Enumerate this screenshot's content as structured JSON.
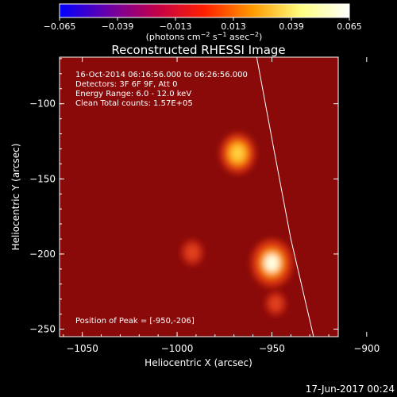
{
  "chart_data": {
    "type": "heatmap",
    "title": "Reconstructed RHESSI Image",
    "xlabel": "Heliocentric X (arcsec)",
    "ylabel": "Heliocentric Y (arcsec)",
    "xlim": [
      -1062,
      -915
    ],
    "ylim": [
      -255,
      -69
    ],
    "x_ticks": [
      -1050,
      -1000,
      -950,
      -900
    ],
    "x_tick_labels": [
      "−1050",
      "−1000",
      "−950",
      "−900"
    ],
    "y_ticks": [
      -100,
      -150,
      -200,
      -250
    ],
    "y_tick_labels": [
      "−100",
      "−150",
      "−200",
      "−250"
    ],
    "colorbar": {
      "range": [
        -0.065,
        0.065
      ],
      "ticks": [
        -0.065,
        -0.039,
        -0.013,
        0.013,
        0.039,
        0.065
      ],
      "tick_labels": [
        "−0.065",
        "−0.039",
        "−0.013",
        "0.013",
        "0.039",
        "0.065"
      ],
      "unit_label": "(photons cm",
      "unit_exp1": "−2",
      "unit_mid": " s",
      "unit_exp2": "−1",
      "unit_mid2": " asec",
      "unit_exp3": "−2",
      "unit_end": ")",
      "colors": [
        "#0000ff",
        "#6a00a8",
        "#c2004a",
        "#ff2000",
        "#ff9a00",
        "#ffff80",
        "#ffffff"
      ]
    },
    "info_lines": [
      "16-Oct-2014 06:16:56.000 to 06:26:56.000",
      "Detectors: 3F 6F 9F, Att 0",
      "Energy Range: 6.0 - 12.0 keV",
      "Clean    Total counts: 1.57E+05"
    ],
    "peak_label": "Position of Peak = [-950,-206]",
    "sources": [
      {
        "x": -950,
        "y": -206,
        "intensity": 1.0
      },
      {
        "x": -968,
        "y": -133,
        "intensity": 0.75
      },
      {
        "x": -992,
        "y": -199,
        "intensity": 0.28
      },
      {
        "x": -948,
        "y": -233,
        "intensity": 0.22
      }
    ],
    "limb_points": [
      [
        -958,
        -69
      ],
      [
        -949,
        -130
      ],
      [
        -940,
        -190
      ],
      [
        -928,
        -255
      ]
    ],
    "background_color": "#8a0a0a"
  },
  "footer_date": "17-Jun-2017 00:24"
}
